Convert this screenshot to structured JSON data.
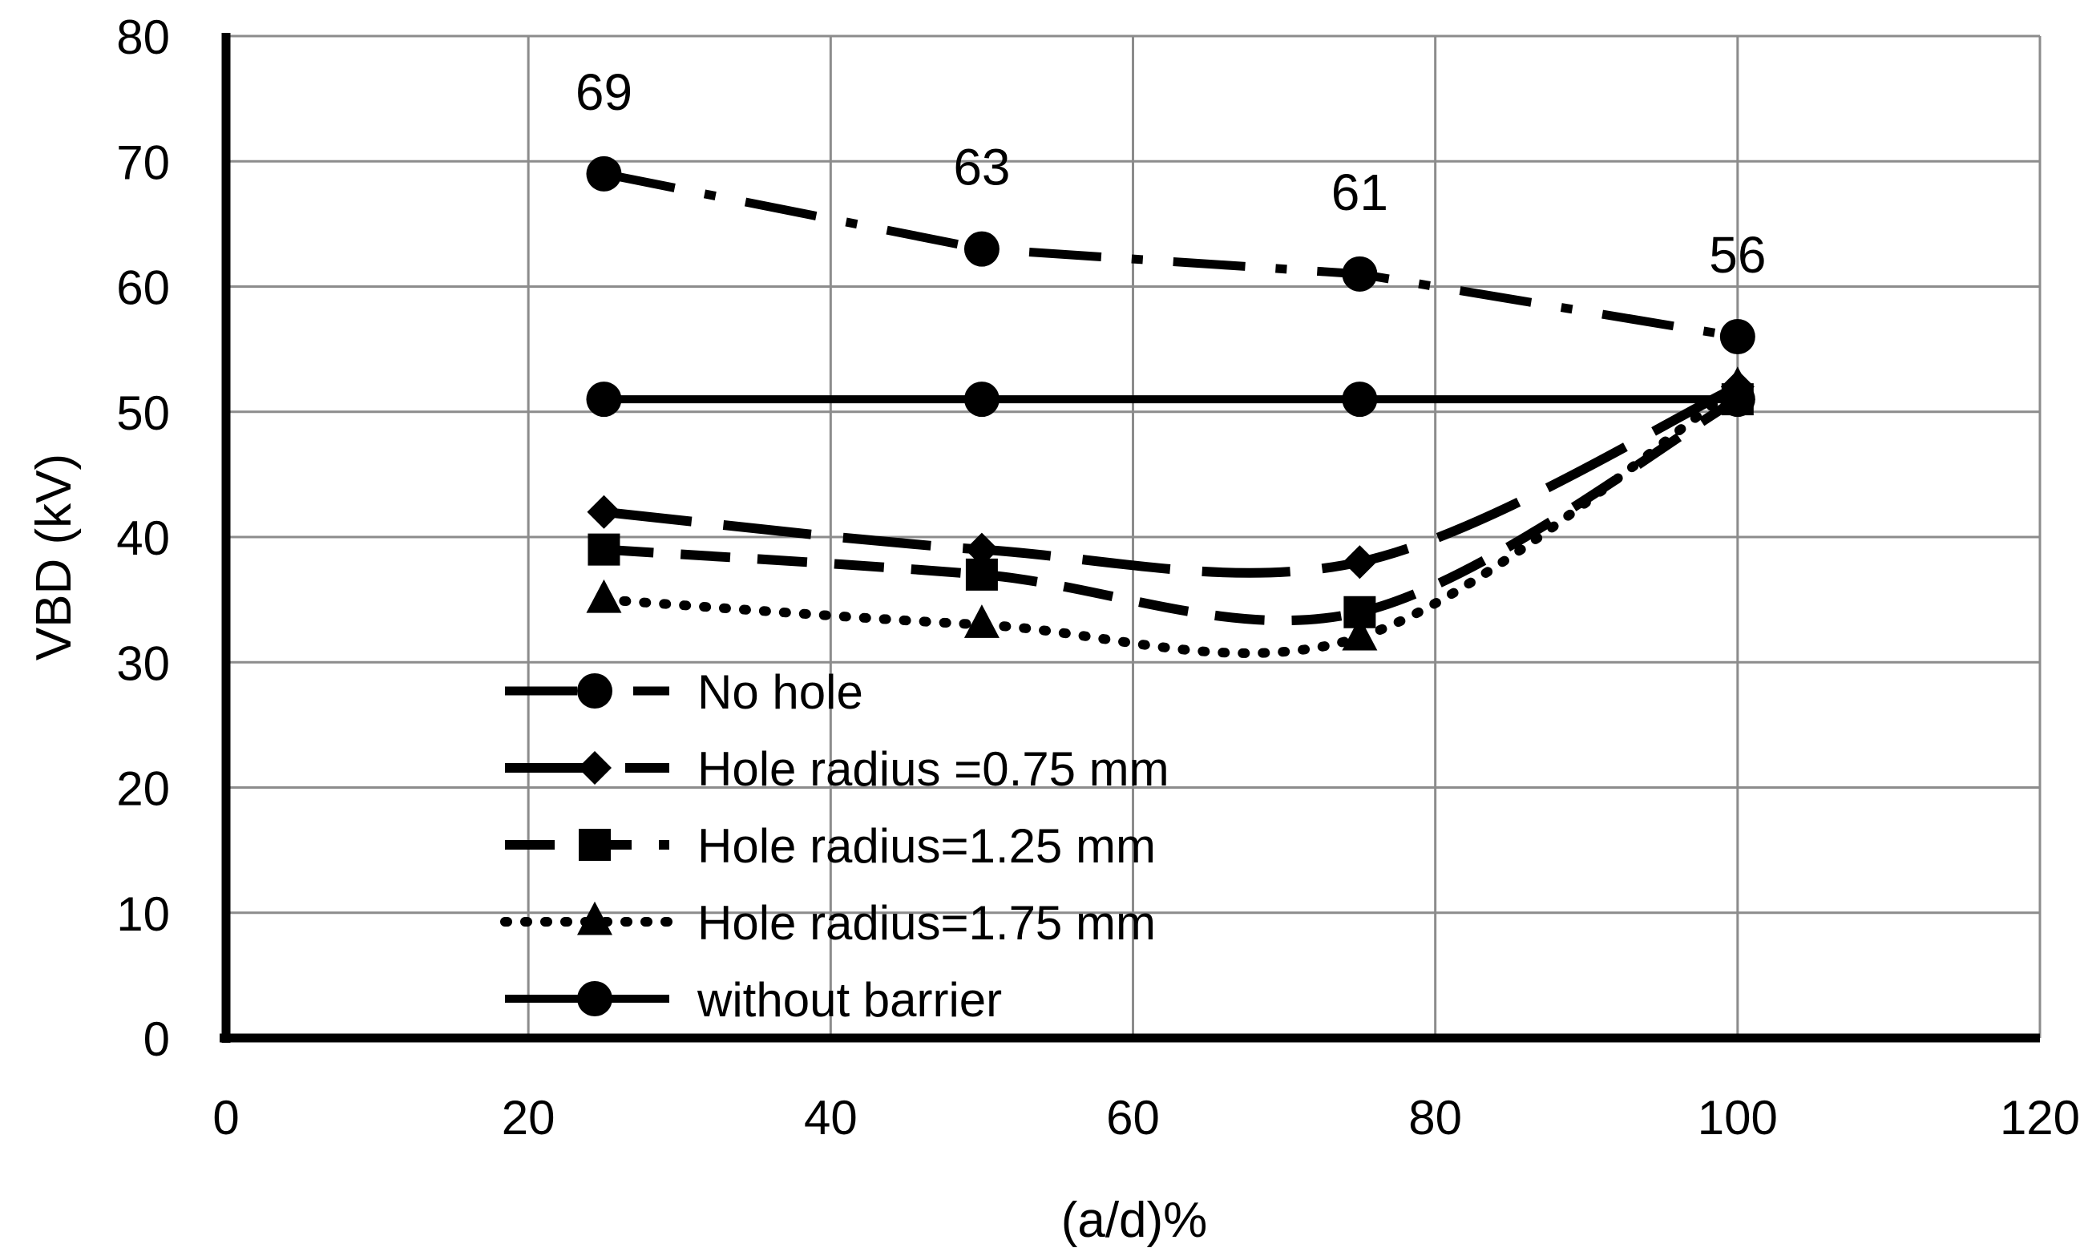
{
  "chart_data": {
    "type": "line",
    "title": "",
    "xlabel": "(a/d)%",
    "ylabel": "VBD (kV)",
    "xlim": [
      0,
      120
    ],
    "ylim": [
      0,
      80
    ],
    "x_ticks": [
      0,
      20,
      40,
      60,
      80,
      100,
      120
    ],
    "y_ticks": [
      0,
      10,
      20,
      30,
      40,
      50,
      60,
      70,
      80
    ],
    "grid": true,
    "legend_position": "bottom-left",
    "series": [
      {
        "name": "No hole",
        "marker": "circle",
        "line_style": "dash-dot",
        "smooth": false,
        "x": [
          25,
          50,
          75,
          100
        ],
        "values": [
          69,
          63,
          61,
          56
        ],
        "data_labels": [
          "69",
          "63",
          "61",
          "56"
        ]
      },
      {
        "name": "Hole radius =0.75 mm",
        "marker": "diamond",
        "line_style": "long-dash",
        "smooth": true,
        "x": [
          25,
          50,
          75,
          100
        ],
        "values": [
          42,
          39,
          38,
          52
        ]
      },
      {
        "name": "Hole radius=1.25 mm",
        "marker": "square",
        "line_style": "dash",
        "smooth": true,
        "x": [
          25,
          50,
          75,
          100
        ],
        "values": [
          39,
          37,
          34,
          51
        ]
      },
      {
        "name": "Hole radius=1.75 mm",
        "marker": "triangle",
        "line_style": "dotted",
        "smooth": true,
        "x": [
          25,
          50,
          75,
          100
        ],
        "values": [
          35,
          33,
          32,
          52
        ]
      },
      {
        "name": "without barrier",
        "marker": "circle",
        "line_style": "solid",
        "smooth": false,
        "x": [
          25,
          50,
          75,
          100
        ],
        "values": [
          51,
          51,
          51,
          51
        ]
      }
    ]
  }
}
